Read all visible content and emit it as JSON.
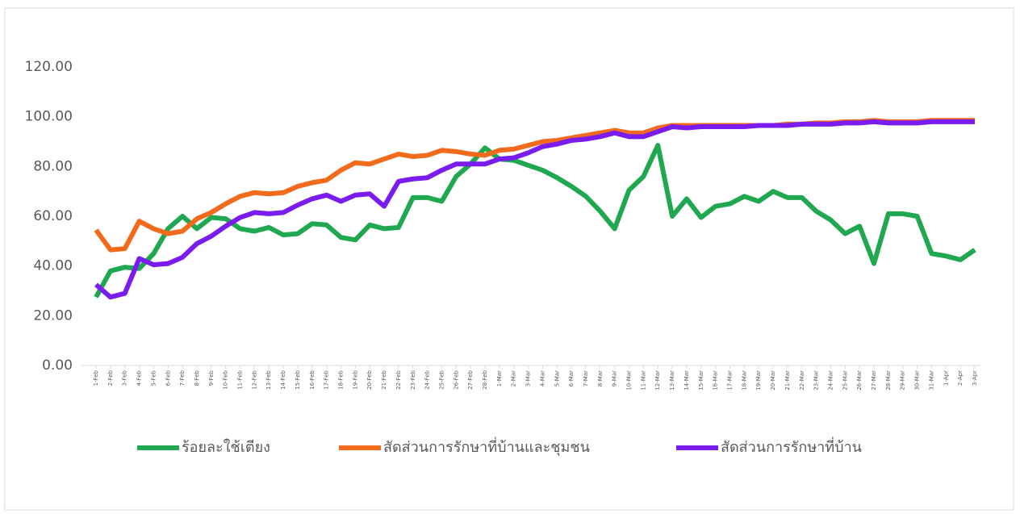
{
  "chart_data": {
    "type": "line",
    "categories": [
      "1-Feb",
      "2-Feb",
      "3-Feb",
      "4-Feb",
      "5-Feb",
      "6-Feb",
      "7-Feb",
      "8-Feb",
      "9-Feb",
      "10-Feb",
      "11-Feb",
      "12-Feb",
      "13-Feb",
      "14-Feb",
      "15-Feb",
      "16-Feb",
      "17-Feb",
      "18-Feb",
      "19-Feb",
      "20-Feb",
      "21-Feb",
      "22-Feb",
      "23-Feb",
      "24-Feb",
      "25-Feb",
      "26-Feb",
      "27-Feb",
      "28-Feb",
      "1-Mar",
      "2-Mar",
      "3-Mar",
      "4-Mar",
      "5-Mar",
      "6-Mar",
      "7-Mar",
      "8-Mar",
      "9-Mar",
      "10-Mar",
      "11-Mar",
      "12-Mar",
      "13-Mar",
      "14-Mar",
      "15-Mar",
      "16-Mar",
      "17-Mar",
      "18-Mar",
      "19-Mar",
      "20-Mar",
      "21-Mar",
      "22-Mar",
      "23-Mar",
      "24-Mar",
      "25-Mar",
      "26-Mar",
      "27-Mar",
      "28-Mar",
      "29-Mar",
      "30-Mar",
      "31-Mar",
      "1-Apr",
      "2-Apr",
      "3-Apr"
    ],
    "series": [
      {
        "name": "ร้อยละใช้เตียง",
        "color": "#1fa84f",
        "values": [
          27.5,
          38,
          39.5,
          39,
          45,
          55,
          60,
          55,
          59.5,
          59,
          55,
          54,
          55.5,
          52.5,
          53,
          57,
          56.5,
          51.5,
          50.5,
          56.5,
          55,
          55.5,
          67.5,
          67.5,
          66,
          76,
          81,
          87.5,
          83,
          82.5,
          80.5,
          78.5,
          75.5,
          72,
          68,
          62,
          55,
          70.5,
          76,
          88.5,
          60,
          67,
          59.5,
          64,
          65,
          68,
          66,
          70,
          67.5,
          67.5,
          62,
          58.5,
          53,
          56,
          41,
          61,
          61,
          60,
          45,
          44,
          42.5,
          46.5
        ]
      },
      {
        "name": "สัดส่วนการรักษาที่บ้านและชุมชน",
        "color": "#f26b1d",
        "values": [
          54.5,
          46.5,
          47,
          58,
          55,
          53,
          54,
          59,
          61.5,
          65,
          68,
          69.5,
          69,
          69.5,
          72,
          73.5,
          74.5,
          78.5,
          81.5,
          81,
          83,
          85,
          84,
          84.5,
          86.5,
          86,
          85,
          84.5,
          86.5,
          87,
          88.5,
          90,
          90.5,
          91.5,
          92.5,
          93.5,
          94.5,
          93.5,
          93.5,
          95.5,
          96.5,
          96.5,
          96.5,
          96.5,
          96.5,
          96.5,
          96.5,
          96.5,
          97,
          97,
          97.5,
          97.5,
          98,
          98,
          98.5,
          98,
          98,
          98,
          98.5,
          98.5,
          98.5,
          98.5
        ]
      },
      {
        "name": "สัดส่วนการรักษาที่บ้าน",
        "color": "#7a1cf0",
        "values": [
          32.5,
          27.5,
          29,
          43,
          40.5,
          41,
          43.5,
          49,
          52,
          56,
          59.5,
          61.5,
          61,
          61.5,
          64.5,
          67,
          68.5,
          66,
          68.5,
          69,
          64,
          74,
          75,
          75.5,
          78.5,
          81,
          81,
          81,
          83,
          83.5,
          85.5,
          88,
          89,
          90.5,
          91,
          92,
          93.5,
          92,
          92,
          94,
          96,
          95.5,
          96,
          96,
          96,
          96,
          96.5,
          96.5,
          96.5,
          97,
          97,
          97,
          97.5,
          97.5,
          98,
          97.5,
          97.5,
          97.5,
          98,
          98,
          98,
          98
        ]
      }
    ],
    "ylim": [
      0,
      120
    ],
    "yticks": [
      {
        "value": 0,
        "label": "0.00"
      },
      {
        "value": 20,
        "label": "20.00"
      },
      {
        "value": 40,
        "label": "40.00"
      },
      {
        "value": 60,
        "label": "60.00"
      },
      {
        "value": 80,
        "label": "80.00"
      },
      {
        "value": 100,
        "label": "100.00"
      },
      {
        "value": 120,
        "label": "120.00"
      }
    ],
    "legend": "bottom"
  }
}
